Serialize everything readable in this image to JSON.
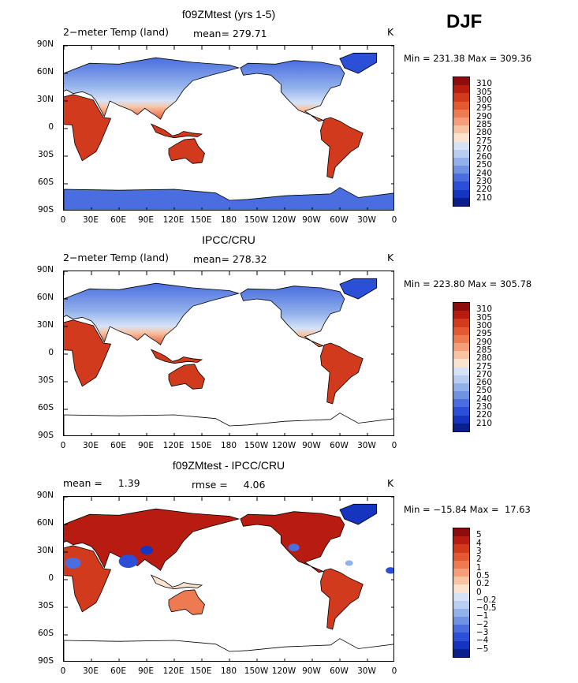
{
  "season": "DJF",
  "panels": [
    {
      "title": "f09ZMtest (yrs 1-5)",
      "left_label": "2−meter Temp (land)",
      "center_label": "mean= 279.71",
      "units": "K",
      "minmax": "Min = 231.38 Max = 309.36",
      "colorbar": [
        "310",
        "305",
        "300",
        "295",
        "290",
        "285",
        "280",
        "275",
        "270",
        "260",
        "250",
        "240",
        "230",
        "220",
        "210"
      ],
      "colors": [
        "#8b0d0d",
        "#b81c10",
        "#d23a1e",
        "#e35a32",
        "#ee7a52",
        "#f49d78",
        "#f8c3a3",
        "#fbe3d0",
        "#d6e3f7",
        "#b8cdf0",
        "#92b1eb",
        "#6f92e2",
        "#4a6ee0",
        "#2b4fd6",
        "#1534bf",
        "#0b1f8a"
      ],
      "land_style": "temp"
    },
    {
      "title": "IPCC/CRU",
      "left_label": "2−meter Temp (land)",
      "center_label": "mean= 278.32",
      "units": "K",
      "minmax": "Min = 223.80 Max = 305.78",
      "colorbar": [
        "310",
        "305",
        "300",
        "295",
        "290",
        "285",
        "280",
        "275",
        "270",
        "260",
        "250",
        "240",
        "230",
        "220",
        "210"
      ],
      "colors": [
        "#8b0d0d",
        "#b81c10",
        "#d23a1e",
        "#e35a32",
        "#ee7a52",
        "#f49d78",
        "#f8c3a3",
        "#fbe3d0",
        "#d6e3f7",
        "#b8cdf0",
        "#92b1eb",
        "#6f92e2",
        "#4a6ee0",
        "#2b4fd6",
        "#1534bf",
        "#0b1f8a"
      ],
      "land_style": "temp-noant"
    },
    {
      "title": "f09ZMtest - IPCC/CRU",
      "left_label": "mean =     1.39",
      "center_label": "rmse =     4.06",
      "units": "K",
      "minmax": "Min = −15.84 Max =  17.63",
      "colorbar": [
        "5",
        "4",
        "3",
        "2",
        "1",
        "0.5",
        "0.2",
        "0",
        "−0.2",
        "−0.5",
        "−1",
        "−2",
        "−3",
        "−4",
        "−5"
      ],
      "colors": [
        "#8b0d0d",
        "#b81c10",
        "#d23a1e",
        "#e35a32",
        "#ee7a52",
        "#f49d78",
        "#f8c3a3",
        "#fbe3d0",
        "#d6e3f7",
        "#b8cdf0",
        "#92b1eb",
        "#6f92e2",
        "#4a6ee0",
        "#2b4fd6",
        "#1534bf",
        "#0b1f8a"
      ],
      "land_style": "diff"
    }
  ],
  "lat_ticks": [
    "90N",
    "60N",
    "30N",
    "0",
    "30S",
    "60S",
    "90S"
  ],
  "lon_ticks": [
    "0",
    "30E",
    "60E",
    "90E",
    "120E",
    "150E",
    "180",
    "150W",
    "120W",
    "90W",
    "60W",
    "30W",
    "0"
  ]
}
